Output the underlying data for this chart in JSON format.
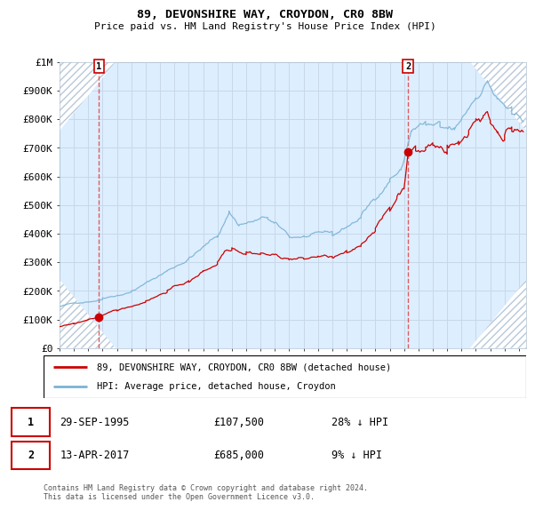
{
  "title": "89, DEVONSHIRE WAY, CROYDON, CR0 8BW",
  "subtitle": "Price paid vs. HM Land Registry's House Price Index (HPI)",
  "ylim": [
    0,
    1000000
  ],
  "yticks": [
    0,
    100000,
    200000,
    300000,
    400000,
    500000,
    600000,
    700000,
    800000,
    900000,
    1000000
  ],
  "ytick_labels": [
    "£0",
    "£100K",
    "£200K",
    "£300K",
    "£400K",
    "£500K",
    "£600K",
    "£700K",
    "£800K",
    "£900K",
    "£1M"
  ],
  "hpi_color": "#7ab3d4",
  "price_color": "#cc0000",
  "sale1_date_num": 1995.75,
  "sale1_price": 107500,
  "sale1_label": "1",
  "sale2_date_num": 2017.28,
  "sale2_price": 685000,
  "sale2_label": "2",
  "legend_entry1": "89, DEVONSHIRE WAY, CROYDON, CR0 8BW (detached house)",
  "legend_entry2": "HPI: Average price, detached house, Croydon",
  "footer": "Contains HM Land Registry data © Crown copyright and database right 2024.\nThis data is licensed under the Open Government Licence v3.0.",
  "background_color": "#ffffff",
  "plot_bg_color": "#ddeeff",
  "grid_color": "#c8d8e8",
  "dashed_line_color": "#dd4444",
  "xmin": 1993,
  "xmax": 2025.5
}
